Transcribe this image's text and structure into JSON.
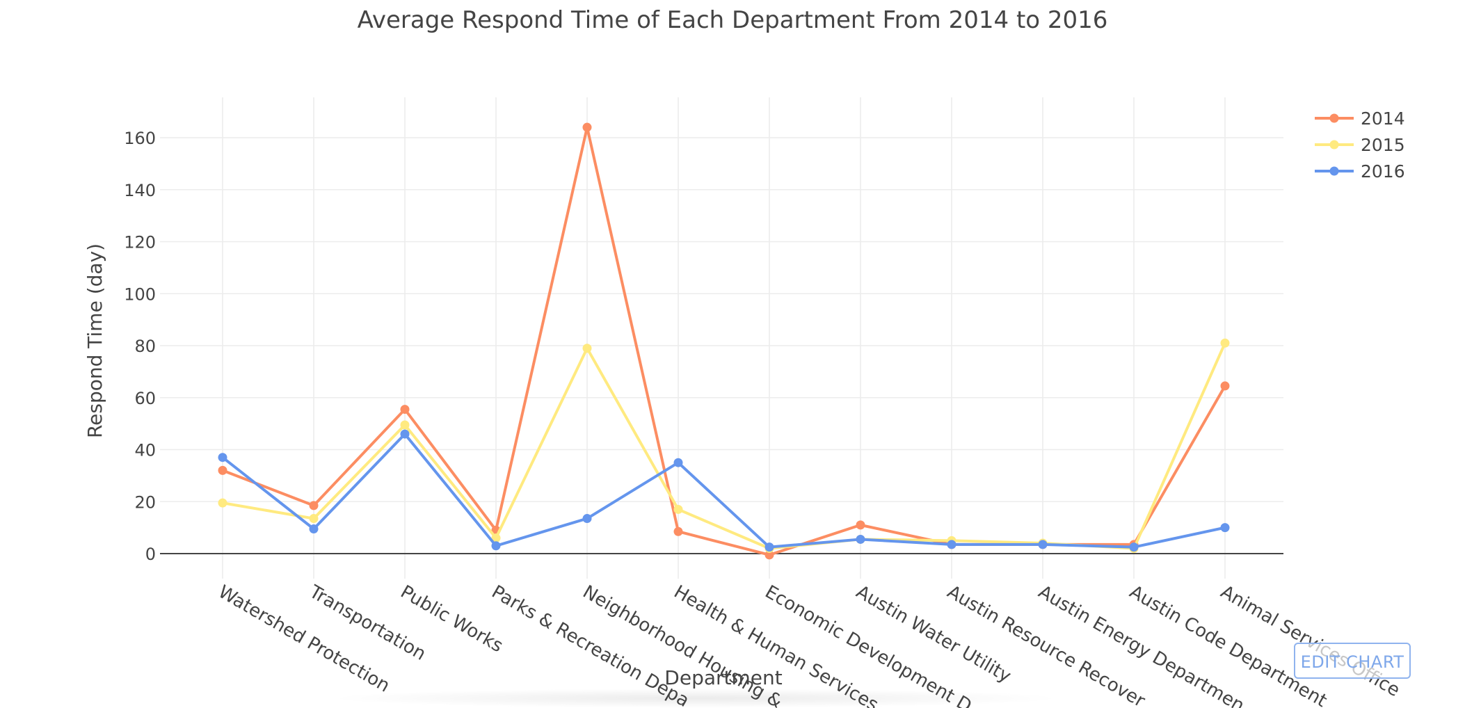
{
  "edit_chart_label": "EDIT CHART",
  "colors": {
    "2014": "#fc8d62",
    "2015": "#ffea80",
    "2016": "#6495ed",
    "grid": "#ececec",
    "text": "#444444"
  },
  "chart_data": {
    "type": "line",
    "title": "Average Respond Time of Each Department From 2014 to 2016",
    "xlabel": "Department",
    "ylabel": "Respond Time (day)",
    "categories": [
      "Watershed Protection",
      "Transportation",
      "Public Works",
      "Parks & Recreation Department",
      "Neighborhood Housing & Community Development",
      "Health & Human Services",
      "Economic Development Department",
      "Austin Water Utility",
      "Austin Resource Recovery",
      "Austin Energy Department",
      "Austin Code Department",
      "Animal Services Office"
    ],
    "category_labels_shown": [
      "Watershed Protection",
      "Transportation",
      "Public Works",
      "Parks & Recreation Depa",
      "Neighborhood Housing &",
      "Health & Human Services",
      "Economic Development D",
      "Austin Water Utility",
      "Austin Resource Recover",
      "Austin Energy Departmen",
      "Austin Code Department",
      "Animal Services Office"
    ],
    "yticks": [
      0,
      20,
      40,
      60,
      80,
      100,
      120,
      140,
      160
    ],
    "ylim": [
      -10,
      175
    ],
    "grid": true,
    "legend_position": "top-right",
    "series": [
      {
        "name": "2014",
        "values": [
          32,
          18.5,
          55.5,
          9,
          164,
          8.5,
          -0.5,
          11,
          3.5,
          3.5,
          3.5,
          64.5
        ]
      },
      {
        "name": "2015",
        "values": [
          19.5,
          13.5,
          49.5,
          6,
          79,
          17,
          2,
          5.5,
          5,
          4,
          2,
          81
        ]
      },
      {
        "name": "2016",
        "values": [
          37,
          9.5,
          46,
          3,
          13.5,
          35,
          2.5,
          5.5,
          3.5,
          3.5,
          2.5,
          10
        ]
      }
    ]
  }
}
